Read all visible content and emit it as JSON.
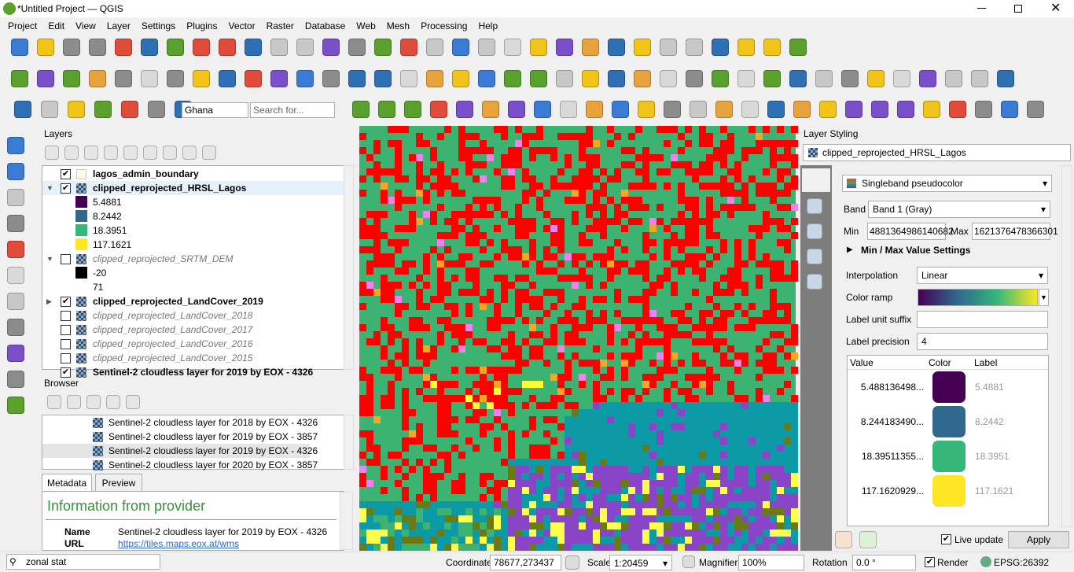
{
  "window": {
    "title": "*Untitled Project — QGIS"
  },
  "menu": [
    "Project",
    "Edit",
    "View",
    "Layer",
    "Settings",
    "Plugins",
    "Vector",
    "Raster",
    "Database",
    "Web",
    "Mesh",
    "Processing",
    "Help"
  ],
  "toolbar": {
    "locator": "Ghana",
    "search_placeholder": "Search for..."
  },
  "layers_panel": {
    "title": "Layers",
    "items": [
      {
        "name": "lagos_admin_boundary",
        "visible": true
      },
      {
        "name": "clipped_reprojected_HRSL_Lagos",
        "visible": true,
        "expanded": true,
        "legend": [
          {
            "label": "5.4881",
            "color": "#440154"
          },
          {
            "label": "8.2442",
            "color": "#31688e"
          },
          {
            "label": "18.3951",
            "color": "#35b779"
          },
          {
            "label": "117.1621",
            "color": "#fde725"
          }
        ]
      },
      {
        "name": "clipped_reprojected_SRTM_DEM",
        "visible": false,
        "expanded": true,
        "legend": [
          {
            "label": "-20",
            "color": "#000000"
          },
          {
            "label": "71"
          }
        ]
      },
      {
        "name": "clipped_reprojected_LandCover_2019",
        "visible": true,
        "expanded": false
      },
      {
        "name": "clipped_reprojected_LandCover_2018",
        "visible": false
      },
      {
        "name": "clipped_reprojected_LandCover_2017",
        "visible": false
      },
      {
        "name": "clipped_reprojected_LandCover_2016",
        "visible": false
      },
      {
        "name": "clipped_reprojected_LandCover_2015",
        "visible": false
      },
      {
        "name": "Sentinel-2 cloudless layer for 2019 by EOX - 4326",
        "visible": true
      }
    ]
  },
  "browser_panel": {
    "title": "Browser",
    "selected": 2,
    "items": [
      "Sentinel-2 cloudless layer for 2018 by EOX - 4326",
      "Sentinel-2 cloudless layer for 2019 by EOX - 3857",
      "Sentinel-2 cloudless layer for 2019 by EOX - 4326",
      "Sentinel-2 cloudless layer for 2020 by EOX - 3857"
    ]
  },
  "metadata": {
    "tabs": [
      "Metadata",
      "Preview"
    ],
    "heading": "Information from provider",
    "rows": [
      {
        "label": "Name",
        "value": "Sentinel-2 cloudless layer for 2019 by EOX - 4326"
      },
      {
        "label": "URL",
        "value": "https://tiles.maps.eox.at/wms"
      }
    ]
  },
  "styling": {
    "title": "Layer Styling",
    "layer": "clipped_reprojected_HRSL_Lagos",
    "renderer": "Singleband pseudocolor",
    "band_label": "Band",
    "band": "Band 1 (Gray)",
    "min_label": "Min",
    "min": "4881364986140682",
    "max_label": "Max",
    "max": "1621376478366301",
    "section": "Min / Max Value Settings",
    "interpolation_label": "Interpolation",
    "interpolation": "Linear",
    "color_ramp_label": "Color ramp",
    "suffix_label": "Label unit suffix",
    "precision_label": "Label precision",
    "precision": "4",
    "table_headers": [
      "Value",
      "Color",
      "Label"
    ],
    "rows": [
      {
        "value": "5.488136498...",
        "color": "#440154",
        "label": "5.4881"
      },
      {
        "value": "8.244183490...",
        "color": "#31688e",
        "label": "8.2442"
      },
      {
        "value": "18.39511355...",
        "color": "#35b779",
        "label": "18.3951"
      },
      {
        "value": "117.1620929...",
        "color": "#fde725",
        "label": "117.1621"
      }
    ],
    "live_update": "Live update",
    "apply": "Apply"
  },
  "status": {
    "search": "zonal stat",
    "coordinate_label": "Coordinate",
    "coordinate": "78677,273437",
    "scale_label": "Scale",
    "scale": "1:20459",
    "magnifier_label": "Magnifier",
    "magnifier": "100%",
    "rotation_label": "Rotation",
    "rotation": "0.0 °",
    "render": "Render",
    "crs": "EPSG:26392"
  }
}
